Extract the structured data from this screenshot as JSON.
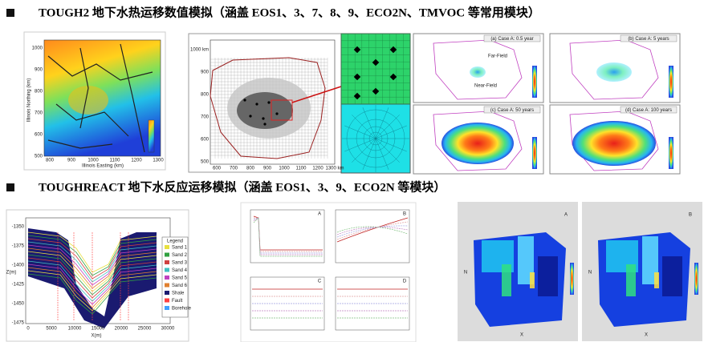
{
  "sections": [
    {
      "title": "TOUGH2 地下水热运移数值模拟（涵盖 EOS1、3、7、8、9、ECO2N、TMVOC 等常用模块）",
      "map": {
        "x_label": "Illinois Easting (km)",
        "y_label": "Illinois Northing (km)",
        "xticks": [
          "800",
          "900",
          "1000",
          "1100",
          "1200",
          "1300"
        ],
        "yticks": [
          "1000",
          "900",
          "800",
          "700",
          "600",
          "500"
        ]
      },
      "grid": {
        "xticks": [
          "600",
          "700",
          "800",
          "900",
          "1000",
          "1100",
          "1200",
          "1300 km"
        ],
        "yticks": [
          "1000 km",
          "900",
          "800",
          "700",
          "600",
          "500"
        ]
      },
      "cases": {
        "titles": [
          "(a) Case A: 0.5 year",
          "(b) Case A: 5 years",
          "(c) Case A: 50 years",
          "(d) Case A: 100 years"
        ],
        "far_field": "Far-Field",
        "near_field": "Near-Field"
      }
    },
    {
      "title": "TOUGHREACT 地下水反应运移模拟（涵盖 EOS1、3、9、ECO2N 等模块）",
      "section": {
        "legend_title": "Legend",
        "legend": [
          "Sand 1",
          "Sand 2",
          "Sand 3",
          "Sand 4",
          "Sand 5",
          "Sand 6",
          "Shale",
          "Fault",
          "Borehole"
        ],
        "x_label": "X(m)",
        "z_label": "Z(m)",
        "xticks": [
          "0",
          "5000",
          "10000",
          "15000",
          "20000",
          "25000",
          "30000"
        ],
        "zticks": [
          "-1350",
          "-1375",
          "-1400",
          "-1425",
          "-1450",
          "-1475"
        ]
      },
      "plots": {
        "letters": [
          "A",
          "B",
          "C",
          "D"
        ]
      },
      "models": {
        "letters": [
          "A",
          "B"
        ],
        "x_label": "X",
        "y_label": "N"
      }
    }
  ]
}
